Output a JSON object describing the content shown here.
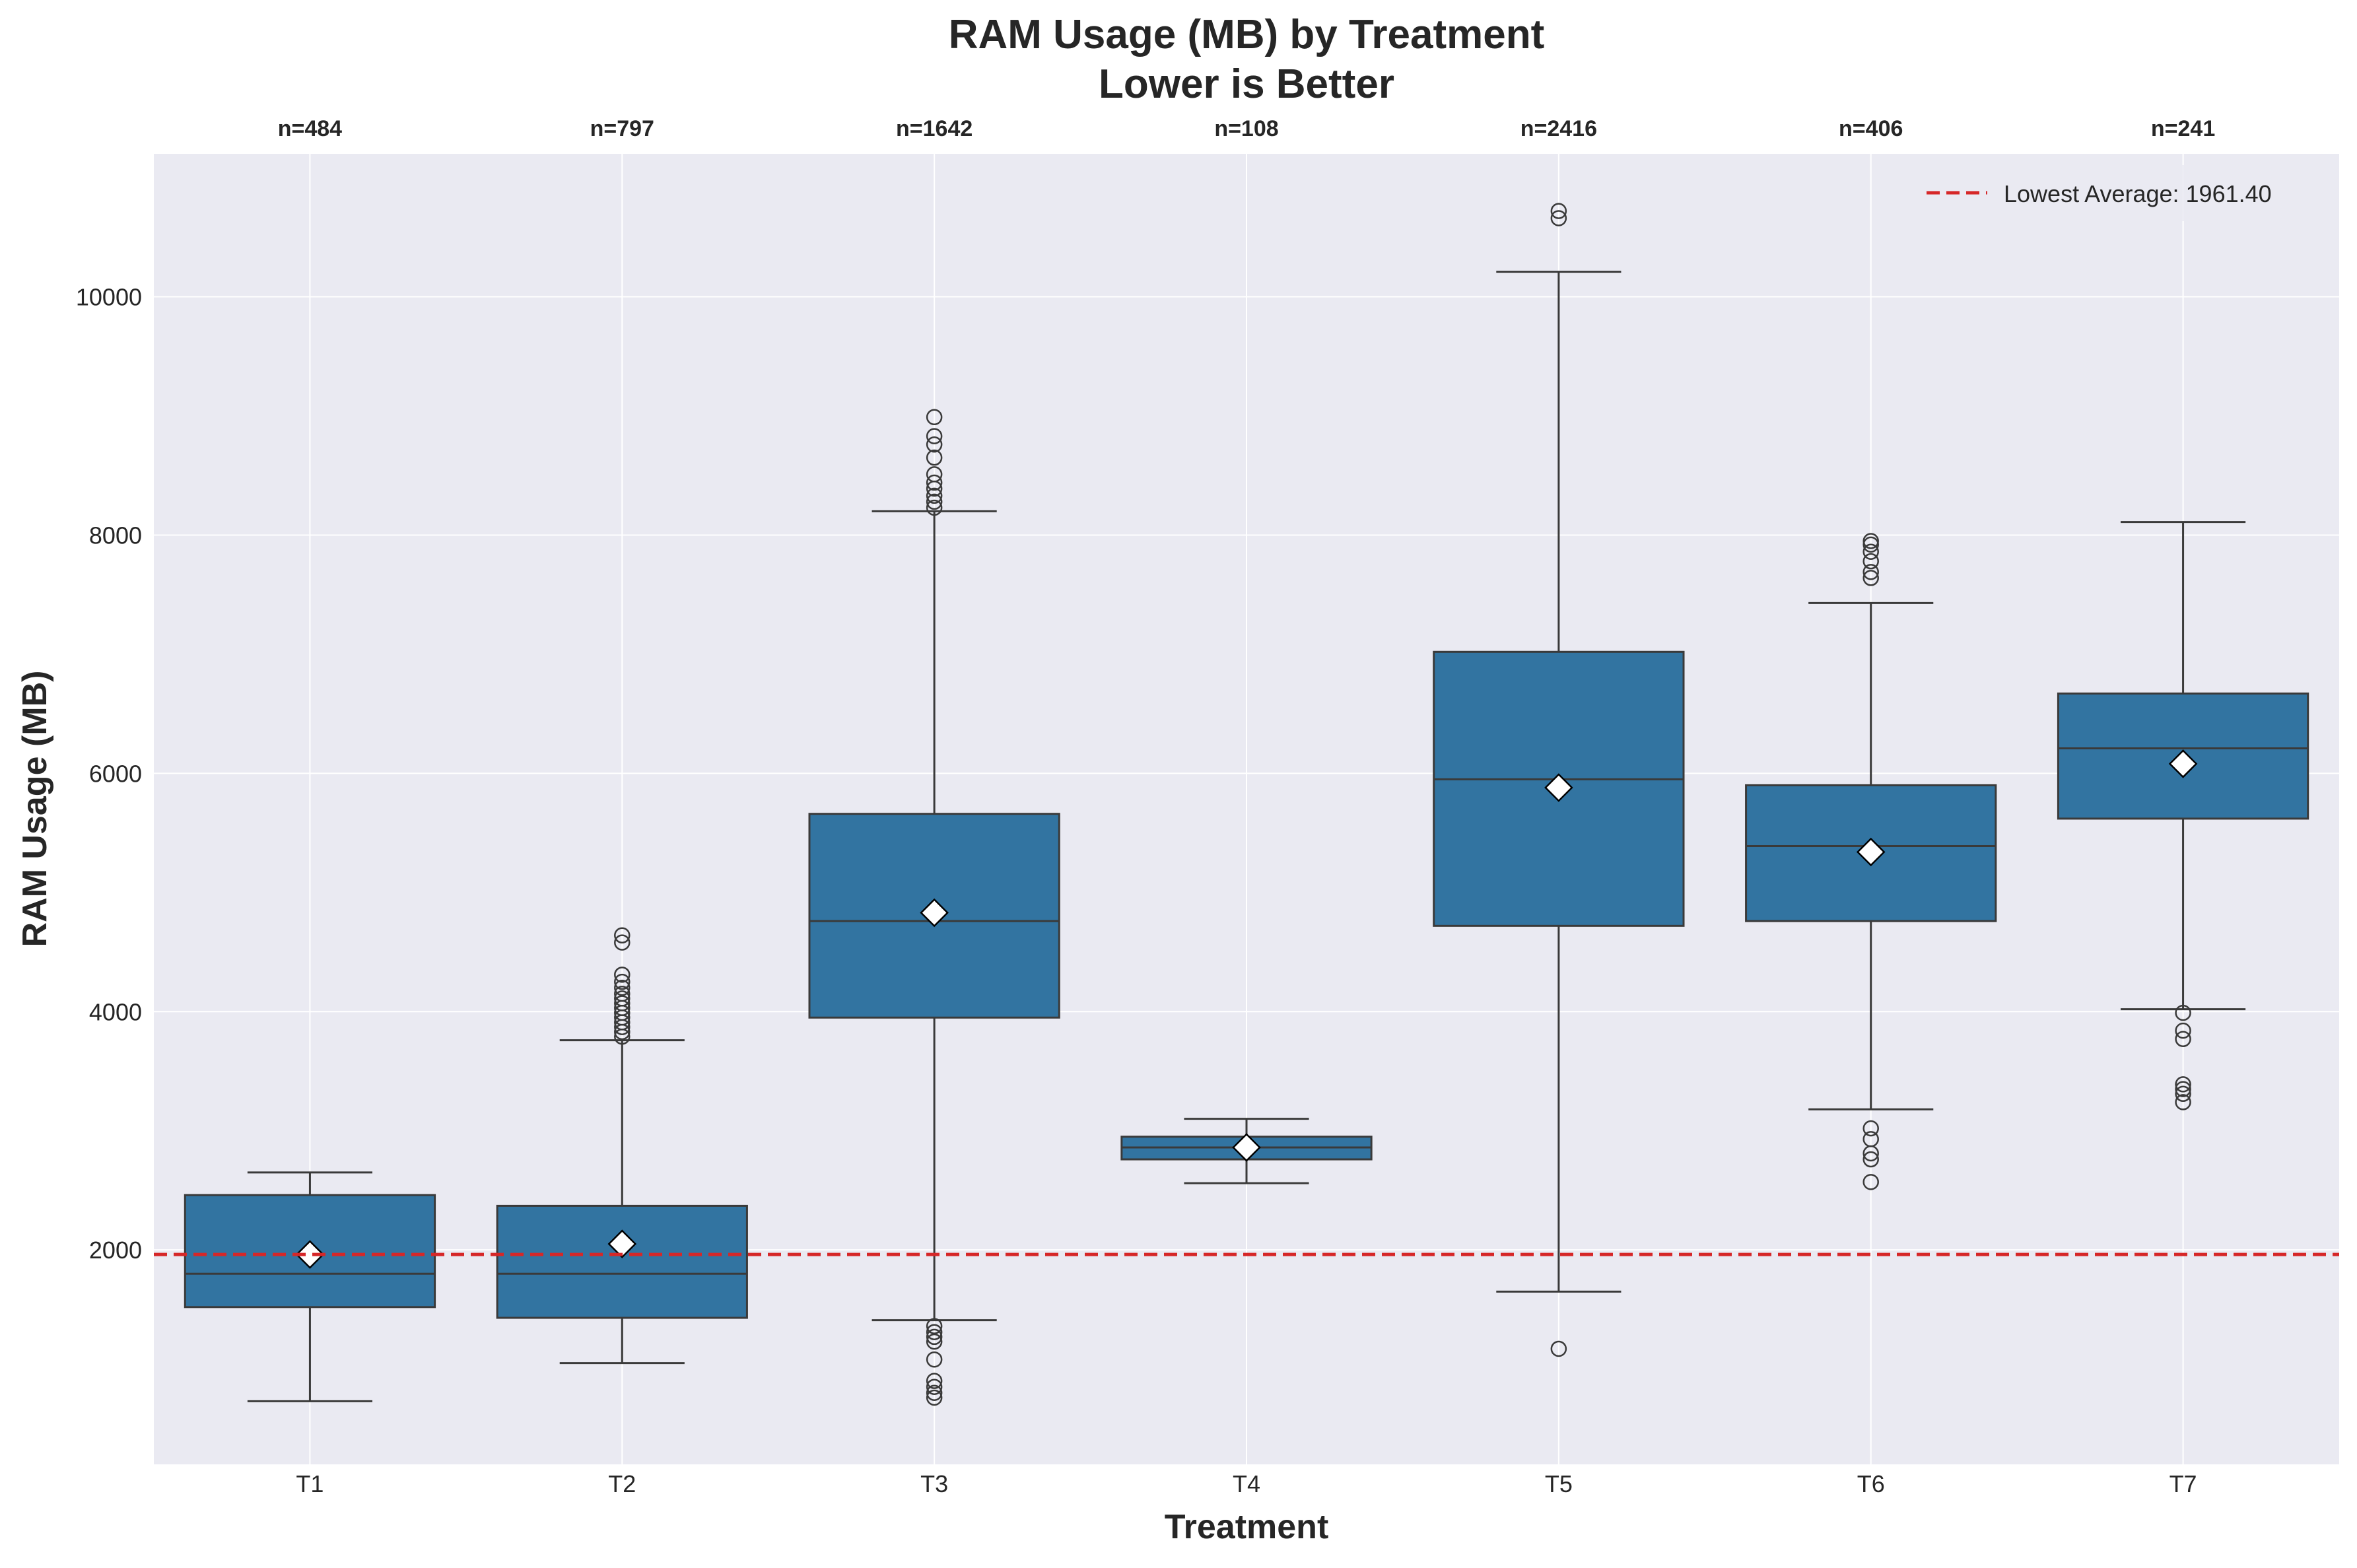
{
  "chart_data": {
    "type": "box",
    "title": "RAM Usage (MB) by Treatment",
    "subtitle": "Lower is Better",
    "xlabel": "Treatment",
    "ylabel": "RAM Usage (MB)",
    "ylim": [
      200,
      11200
    ],
    "yticks": [
      2000,
      4000,
      6000,
      8000,
      10000
    ],
    "grid": true,
    "legend_position": "top-right",
    "colors": {
      "box_fill": "#3274a1",
      "box_edge": "#3a3a3a",
      "reference_line": "#d62728",
      "background": "#eaeaf2",
      "grid": "#ffffff"
    },
    "reference_line": {
      "value": 1961.4,
      "label": "Lowest Average: 1961.40"
    },
    "categories": [
      "T1",
      "T2",
      "T3",
      "T4",
      "T5",
      "T6",
      "T7"
    ],
    "counts": [
      "n=484",
      "n=797",
      "n=1642",
      "n=108",
      "n=2416",
      "n=406",
      "n=241"
    ],
    "boxes": [
      {
        "category": "T1",
        "whisker_low": 730,
        "q1": 1520,
        "median": 1800,
        "q3": 2460,
        "whisker_high": 2650,
        "mean": 1961.4,
        "outliers": []
      },
      {
        "category": "T2",
        "whisker_low": 1050,
        "q1": 1430,
        "median": 1800,
        "q3": 2370,
        "whisker_high": 3760,
        "mean": 2050,
        "outliers": [
          3790,
          3830,
          3870,
          3910,
          3950,
          3990,
          4030,
          4070,
          4110,
          4150,
          4200,
          4250,
          4310,
          4580,
          4640
        ]
      },
      {
        "category": "T3",
        "whisker_low": 1410,
        "q1": 3950,
        "median": 4760,
        "q3": 5660,
        "whisker_high": 8200,
        "mean": 4830,
        "outliers": [
          760,
          800,
          850,
          900,
          1080,
          1230,
          1270,
          1310,
          1360,
          8230,
          8280,
          8330,
          8390,
          8440,
          8510,
          8650,
          8760,
          8830,
          8990
        ]
      },
      {
        "category": "T4",
        "whisker_low": 2560,
        "q1": 2760,
        "median": 2860,
        "q3": 2950,
        "whisker_high": 3100,
        "mean": 2860,
        "outliers": []
      },
      {
        "category": "T5",
        "whisker_low": 1650,
        "q1": 4720,
        "median": 5950,
        "q3": 7020,
        "whisker_high": 10210,
        "mean": 5880,
        "outliers": [
          1170,
          10660,
          10720
        ]
      },
      {
        "category": "T6",
        "whisker_low": 3180,
        "q1": 4760,
        "median": 5390,
        "q3": 5900,
        "whisker_high": 7430,
        "mean": 5340,
        "outliers": [
          2570,
          2760,
          2810,
          2930,
          3020,
          7640,
          7690,
          7780,
          7860,
          7920,
          7950
        ]
      },
      {
        "category": "T7",
        "whisker_low": 4020,
        "q1": 5620,
        "median": 6210,
        "q3": 6670,
        "whisker_high": 8110,
        "mean": 6080,
        "outliers": [
          3240,
          3310,
          3350,
          3390,
          3770,
          3840,
          3990
        ]
      }
    ]
  }
}
